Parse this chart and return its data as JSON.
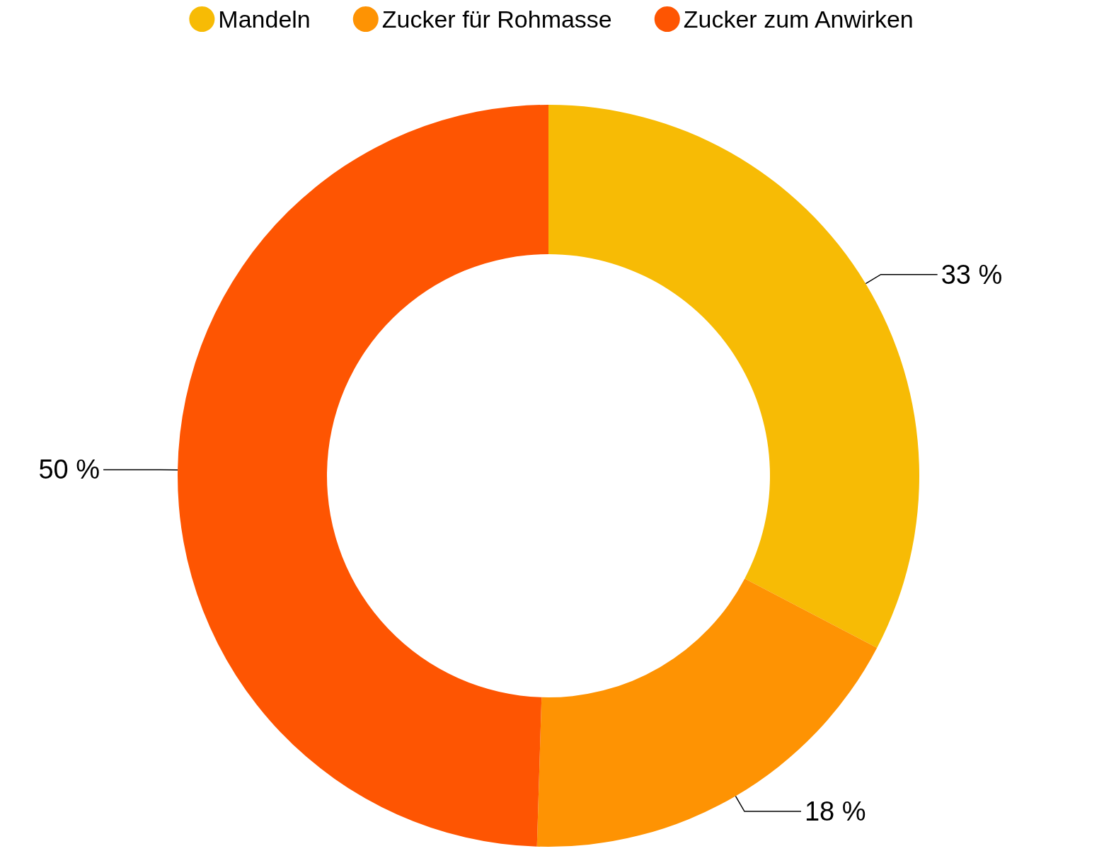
{
  "chart_data": {
    "type": "donut",
    "categories": [
      "Mandeln",
      "Zucker für Rohmasse",
      "Zucker zum Anwirken"
    ],
    "values": [
      33,
      18,
      50
    ],
    "value_labels": [
      "33 %",
      "18 %",
      "50 %"
    ],
    "colors": [
      "#f7bb05",
      "#fe9303",
      "#fe5502"
    ],
    "legend": "top"
  }
}
